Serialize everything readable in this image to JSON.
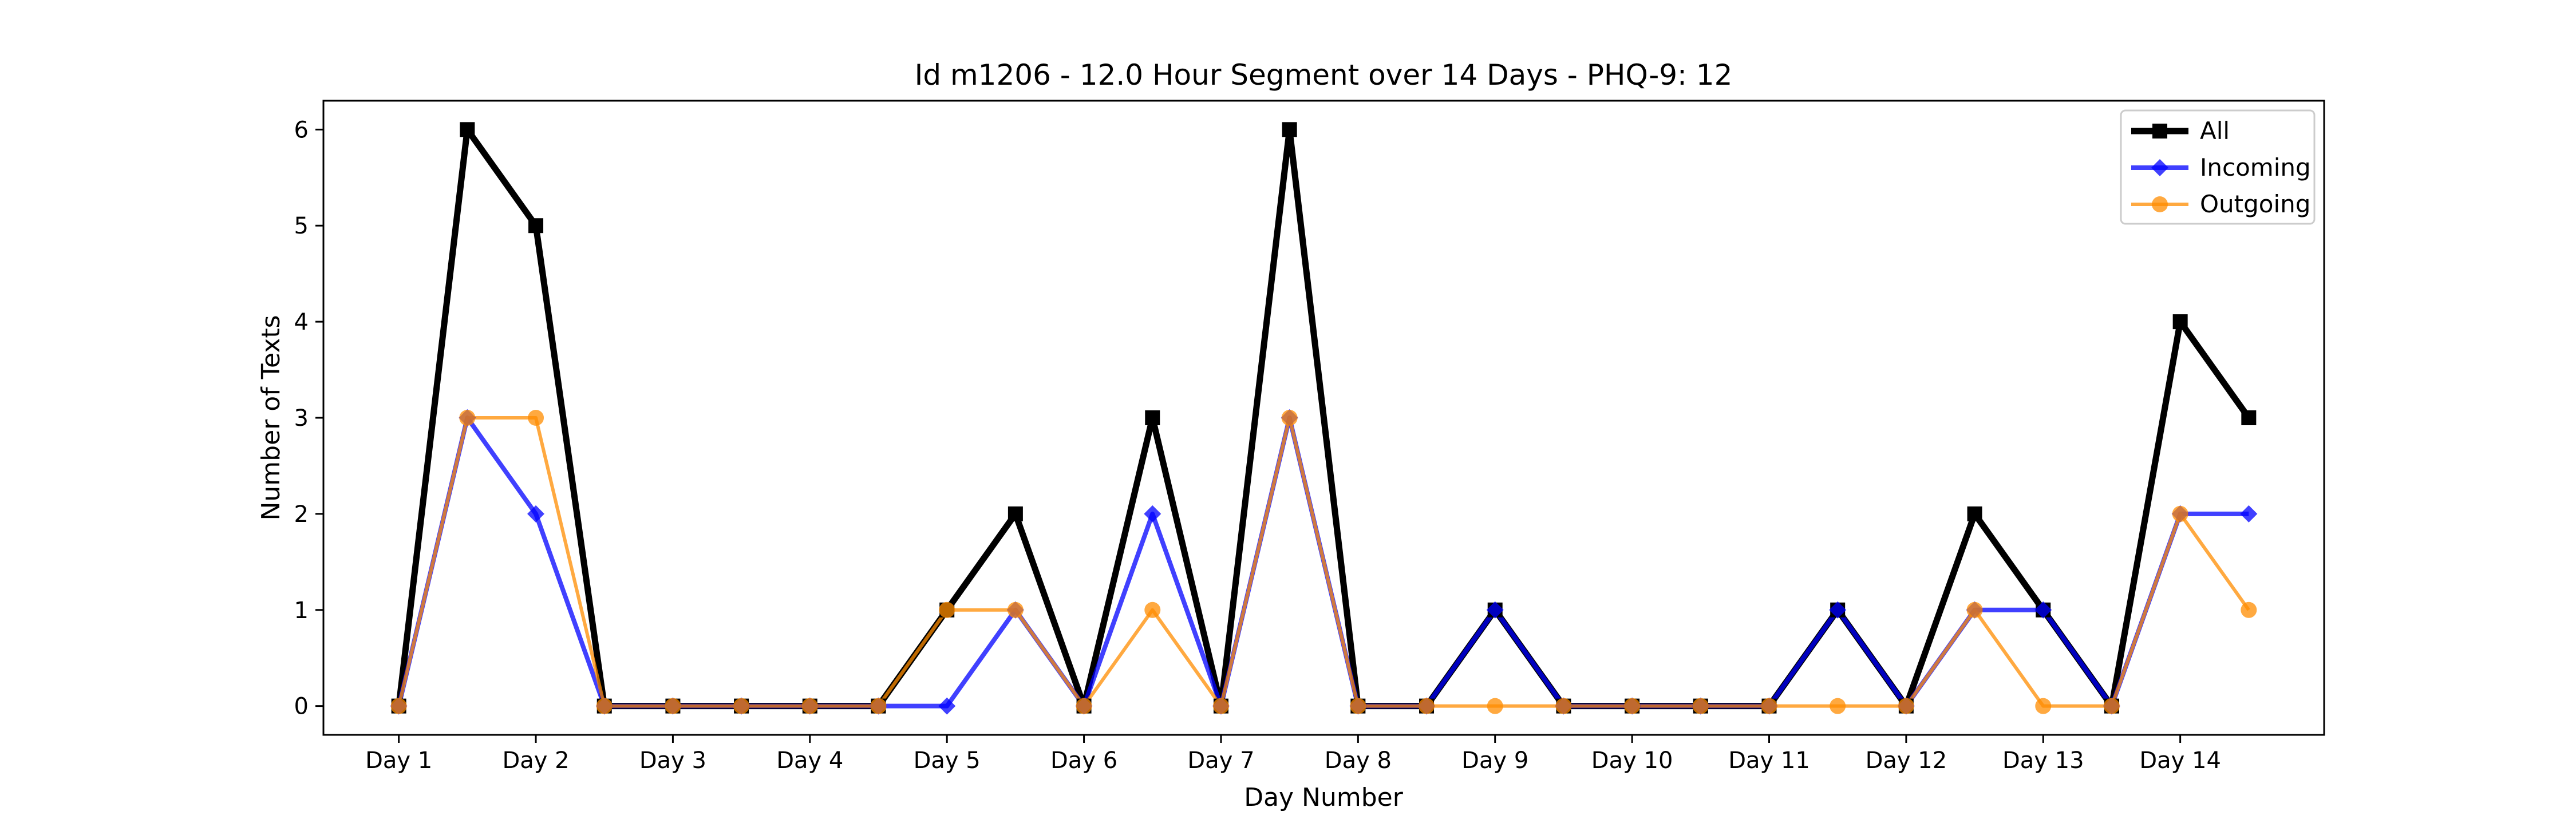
{
  "chart_data": {
    "type": "line",
    "title": "Id m1206 - 12.0 Hour Segment over 14 Days - PHQ-9: 12",
    "xlabel": "Day Number",
    "ylabel": "Number of Texts",
    "xtick_labels": [
      "Day 1",
      "Day 2",
      "Day 3",
      "Day 4",
      "Day 5",
      "Day 6",
      "Day 7",
      "Day 8",
      "Day 9",
      "Day 10",
      "Day 11",
      "Day 12",
      "Day 13",
      "Day 14"
    ],
    "yticks": [
      0,
      1,
      2,
      3,
      4,
      5,
      6
    ],
    "ylim": [
      -0.3,
      6.3
    ],
    "x": [
      1,
      1.5,
      2,
      2.5,
      3,
      3.5,
      4,
      4.5,
      5,
      5.5,
      6,
      6.5,
      7,
      7.5,
      8,
      8.5,
      9,
      9.5,
      10,
      10.5,
      11,
      11.5,
      12,
      12.5,
      13,
      13.5,
      14,
      14.5
    ],
    "xlim": [
      0.45,
      15.05
    ],
    "grid": false,
    "legend_position": "top-right",
    "series": [
      {
        "name": "All",
        "color": "#000000",
        "marker": "square",
        "values": [
          0,
          6,
          5,
          0,
          0,
          0,
          0,
          0,
          1,
          2,
          0,
          3,
          0,
          6,
          0,
          0,
          1,
          0,
          0,
          0,
          0,
          1,
          0,
          2,
          1,
          0,
          4,
          3
        ]
      },
      {
        "name": "Incoming",
        "color": "#0000ff",
        "marker": "diamond",
        "values": [
          0,
          3,
          2,
          0,
          0,
          0,
          0,
          0,
          0,
          1,
          0,
          2,
          0,
          3,
          0,
          0,
          1,
          0,
          0,
          0,
          0,
          1,
          0,
          1,
          1,
          0,
          2,
          2
        ]
      },
      {
        "name": "Outgoing",
        "color": "#ff8c00",
        "marker": "circle",
        "values": [
          0,
          3,
          3,
          0,
          0,
          0,
          0,
          0,
          1,
          1,
          0,
          1,
          0,
          3,
          0,
          0,
          0,
          0,
          0,
          0,
          0,
          0,
          0,
          1,
          0,
          0,
          2,
          1
        ]
      }
    ]
  }
}
